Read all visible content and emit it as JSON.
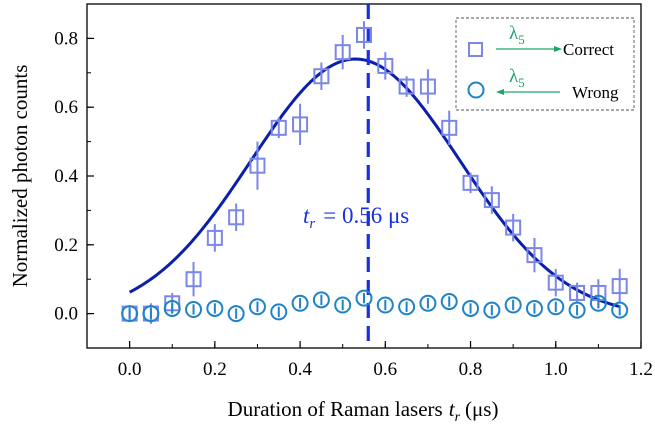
{
  "chart_data": {
    "type": "scatter",
    "xlabel": "Duration of Raman lasers",
    "xlabel_var": "t",
    "xlabel_sub": "r",
    "xlabel_unit": "(μs)",
    "ylabel": "Normalized photon counts",
    "xlim": [
      -0.1,
      1.2
    ],
    "ylim": [
      -0.1,
      0.9
    ],
    "x_ticks": [
      0.0,
      0.2,
      0.4,
      0.6,
      0.8,
      1.0,
      1.2
    ],
    "x_tick_labels": [
      "0.0",
      "0.2",
      "0.4",
      "0.6",
      "0.8",
      "1.0",
      "1.2"
    ],
    "y_ticks": [
      0.0,
      0.2,
      0.4,
      0.6,
      0.8
    ],
    "y_tick_labels": [
      "0.0",
      "0.2",
      "0.4",
      "0.6",
      "0.8"
    ],
    "grid": false,
    "legend_position": "top-right",
    "series": [
      {
        "name": "Correct",
        "marker": "square",
        "color": "#7b86ea",
        "x": [
          0.0,
          0.05,
          0.1,
          0.15,
          0.2,
          0.25,
          0.3,
          0.35,
          0.4,
          0.45,
          0.5,
          0.55,
          0.6,
          0.65,
          0.7,
          0.75,
          0.8,
          0.85,
          0.9,
          0.95,
          1.0,
          1.05,
          1.1,
          1.15
        ],
        "y": [
          0.0,
          0.0,
          0.03,
          0.1,
          0.22,
          0.28,
          0.43,
          0.54,
          0.55,
          0.69,
          0.76,
          0.81,
          0.72,
          0.66,
          0.66,
          0.54,
          0.38,
          0.33,
          0.25,
          0.17,
          0.09,
          0.06,
          0.06,
          0.08
        ],
        "err": [
          0.02,
          0.03,
          0.03,
          0.05,
          0.04,
          0.04,
          0.07,
          0.03,
          0.06,
          0.04,
          0.05,
          0.04,
          0.04,
          0.03,
          0.05,
          0.05,
          0.03,
          0.04,
          0.04,
          0.05,
          0.04,
          0.03,
          0.04,
          0.05
        ]
      },
      {
        "name": "Wrong",
        "marker": "circle",
        "color": "#1f83c6",
        "x": [
          0.0,
          0.05,
          0.1,
          0.15,
          0.2,
          0.25,
          0.3,
          0.35,
          0.4,
          0.45,
          0.5,
          0.55,
          0.6,
          0.65,
          0.7,
          0.75,
          0.8,
          0.85,
          0.9,
          0.95,
          1.0,
          1.05,
          1.1,
          1.15
        ],
        "y": [
          0.0,
          0.0,
          0.015,
          0.012,
          0.015,
          0.0,
          0.02,
          0.005,
          0.03,
          0.04,
          0.025,
          0.045,
          0.025,
          0.02,
          0.03,
          0.035,
          0.015,
          0.01,
          0.025,
          0.015,
          0.02,
          0.01,
          0.03,
          0.01
        ],
        "err": [
          0.015,
          0.015,
          0.015,
          0.015,
          0.015,
          0.015,
          0.015,
          0.015,
          0.015,
          0.015,
          0.015,
          0.015,
          0.015,
          0.015,
          0.015,
          0.015,
          0.015,
          0.015,
          0.015,
          0.015,
          0.015,
          0.015,
          0.015,
          0.015
        ]
      }
    ],
    "fit": {
      "color": "#0b1fa8",
      "curve": "gaussian",
      "amplitude": 0.75,
      "center": 0.53,
      "sigma": 0.245,
      "offset": -0.01,
      "x_range": [
        0.0,
        1.15
      ]
    },
    "vline": {
      "x": 0.56,
      "color": "#1a2fe0",
      "label_var": "t",
      "label_sub": "r",
      "label_text": "= 0.56 μs"
    },
    "legend": {
      "symbol": "λ",
      "subscript": "5",
      "lambda_color": "#1aa86a",
      "entries": [
        {
          "label": "Correct",
          "arrow": "right"
        },
        {
          "label": "Wrong",
          "arrow": "left"
        }
      ]
    }
  }
}
